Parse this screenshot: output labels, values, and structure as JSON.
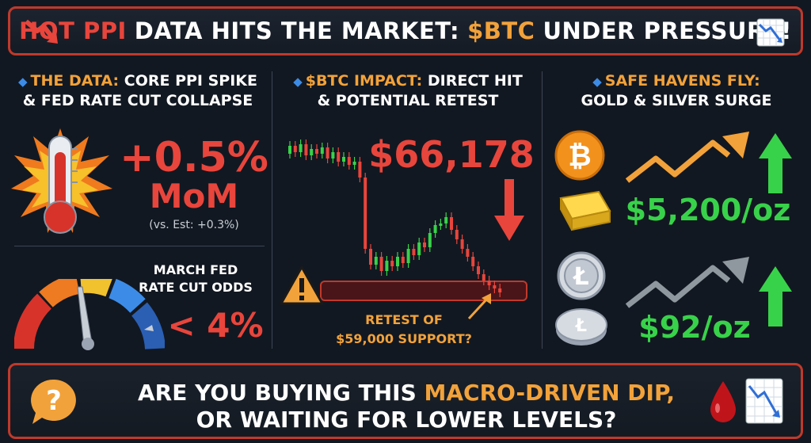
{
  "header": {
    "title_hot": "HOT PPI",
    "title_mid": "DATA HITS THE MARKET:",
    "title_btc": "$BTC",
    "title_end": "UNDER PRESSURE!"
  },
  "data_panel": {
    "heading_prefix": "THE DATA:",
    "heading_rest1": "CORE PPI SPIKE",
    "heading_line2": "& FED RATE CUT COLLAPSE",
    "ppi_value": "+0.5%",
    "ppi_unit": "MoM",
    "ppi_estimate": "(vs. Est: +0.3%)",
    "odds_label_line1": "MARCH FED",
    "odds_label_line2": "RATE CUT ODDS",
    "odds_value": "< 4%"
  },
  "btc_panel": {
    "heading_prefix": "$BTC IMPACT:",
    "heading_rest1": "DIRECT HIT",
    "heading_line2": "& POTENTIAL RETEST",
    "price": "$66,178",
    "retest_line1": "RETEST OF",
    "retest_line2": "$59,000 SUPPORT?"
  },
  "haven_panel": {
    "heading_line1": "SAFE HAVENS FLY:",
    "heading_line2": "GOLD & SILVER SURGE",
    "gold_price": "$5,200/oz",
    "silver_price": "$92/oz"
  },
  "footer": {
    "question_start": "ARE YOU BUYING THIS",
    "question_highlight": "MACRO-DRIVEN DIP,",
    "question_line2": "OR WAITING FOR LOWER LEVELS?"
  },
  "icons": {
    "down_arrow": "down-arrow-icon",
    "chart_down": "chart-down-icon",
    "thermometer": "thermometer-icon",
    "gauge": "gauge-icon",
    "warning": "warning-icon",
    "bitcoin": "bitcoin-coin-icon",
    "gold_bar": "gold-bar-icon",
    "litecoin": "silver-coin-icon",
    "question": "question-bubble-icon",
    "blood_drop": "blood-drop-icon"
  },
  "colors": {
    "accent_red": "#e8453c",
    "accent_orange": "#f2a23a",
    "accent_green": "#38d24a",
    "accent_blue": "#3c8ce7",
    "background": "#121821"
  }
}
